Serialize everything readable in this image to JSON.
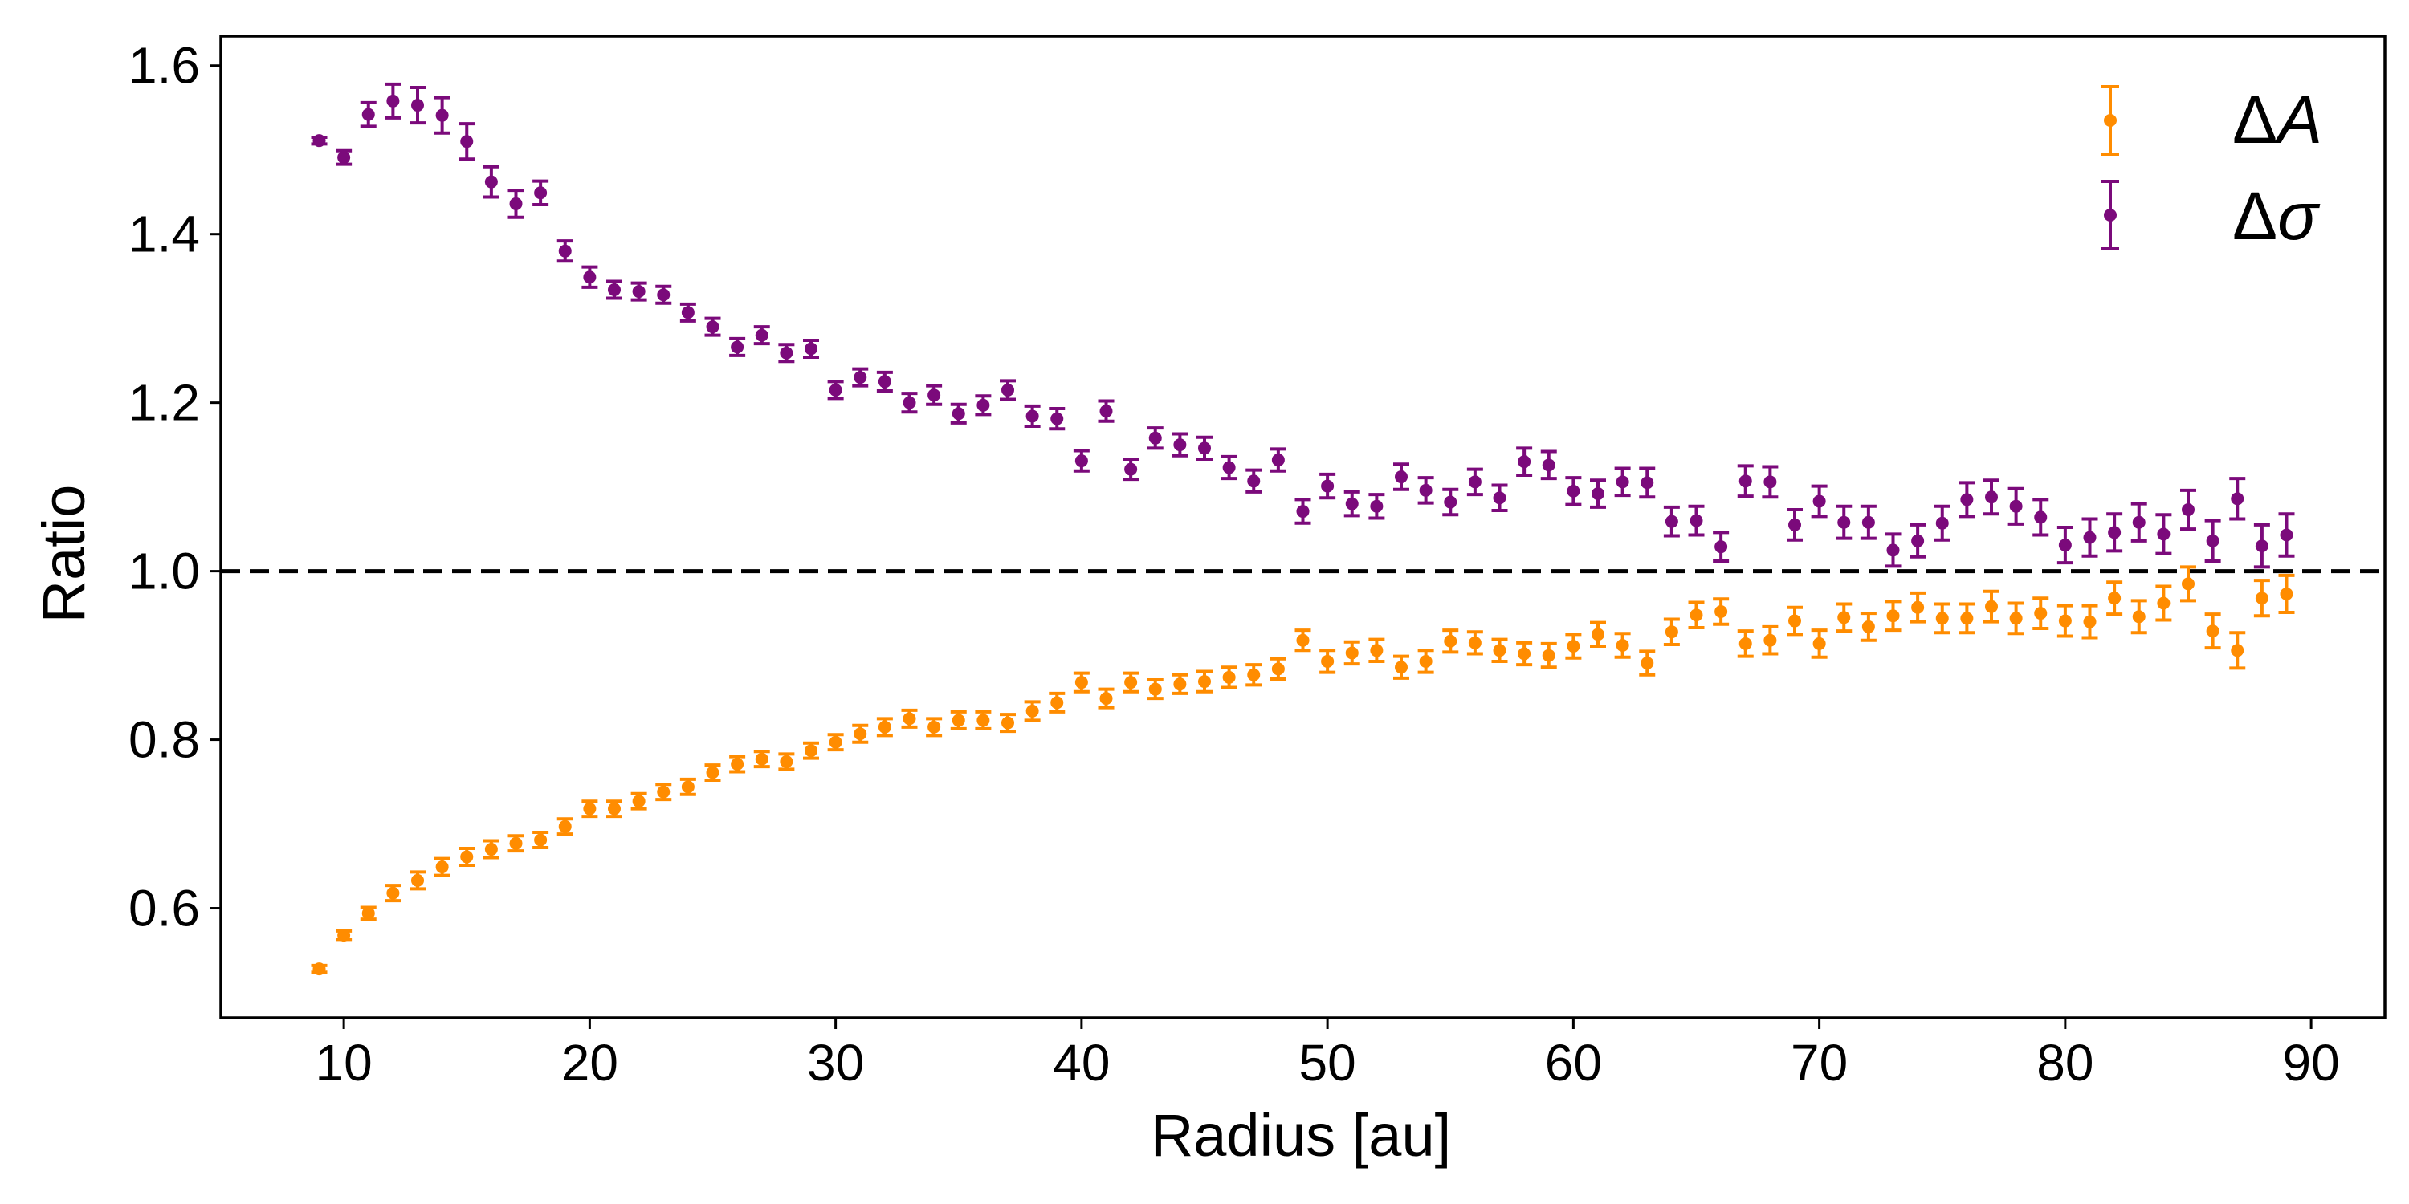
{
  "chart_data": {
    "type": "scatter",
    "title": "",
    "xlabel": "Radius [au]",
    "ylabel": "Ratio",
    "xlim": [
      5,
      93
    ],
    "ylim": [
      0.47,
      1.635
    ],
    "xticks": [
      10,
      20,
      30,
      40,
      50,
      60,
      70,
      80,
      90
    ],
    "xtick_labels": [
      "10",
      "20",
      "30",
      "40",
      "50",
      "60",
      "70",
      "80",
      "90"
    ],
    "yticks": [
      0.6,
      0.8,
      1.0,
      1.2,
      1.4,
      1.6
    ],
    "ytick_labels": [
      "0.6",
      "0.8",
      "1.0",
      "1.2",
      "1.4",
      "1.6"
    ],
    "grid": false,
    "legend_position": "top-right",
    "reference_line": {
      "y": 1.0,
      "style": "dashed",
      "color": "#000000"
    },
    "series": [
      {
        "name": "ΔA",
        "legend_label_base": "Δ",
        "legend_label_symbol": "A",
        "color": "#FF8C00",
        "x": [
          9,
          10,
          11,
          12,
          13,
          14,
          15,
          16,
          17,
          18,
          19,
          20,
          21,
          22,
          23,
          24,
          25,
          26,
          27,
          28,
          29,
          30,
          31,
          32,
          33,
          34,
          35,
          36,
          37,
          38,
          39,
          40,
          41,
          42,
          43,
          44,
          45,
          46,
          47,
          48,
          49,
          50,
          51,
          52,
          53,
          54,
          55,
          56,
          57,
          58,
          59,
          60,
          61,
          62,
          63,
          64,
          65,
          66,
          67,
          68,
          69,
          70,
          71,
          72,
          73,
          74,
          75,
          76,
          77,
          78,
          79,
          80,
          81,
          82,
          83,
          84,
          85,
          86,
          87,
          88,
          89
        ],
        "y": [
          0.528,
          0.568,
          0.594,
          0.618,
          0.633,
          0.649,
          0.661,
          0.67,
          0.677,
          0.681,
          0.697,
          0.718,
          0.718,
          0.727,
          0.738,
          0.744,
          0.761,
          0.771,
          0.777,
          0.774,
          0.787,
          0.797,
          0.807,
          0.815,
          0.825,
          0.815,
          0.823,
          0.823,
          0.82,
          0.834,
          0.844,
          0.868,
          0.849,
          0.868,
          0.86,
          0.866,
          0.869,
          0.874,
          0.877,
          0.884,
          0.918,
          0.893,
          0.903,
          0.906,
          0.886,
          0.893,
          0.917,
          0.915,
          0.906,
          0.902,
          0.9,
          0.911,
          0.925,
          0.912,
          0.891,
          0.928,
          0.948,
          0.952,
          0.914,
          0.918,
          0.941,
          0.914,
          0.945,
          0.934,
          0.947,
          0.957,
          0.944,
          0.944,
          0.958,
          0.944,
          0.95,
          0.941,
          0.94,
          0.968,
          0.946,
          0.962,
          0.985,
          0.929,
          0.906,
          0.968,
          0.973
        ],
        "err": [
          0.004,
          0.005,
          0.007,
          0.009,
          0.01,
          0.01,
          0.01,
          0.01,
          0.009,
          0.009,
          0.009,
          0.009,
          0.009,
          0.009,
          0.009,
          0.009,
          0.009,
          0.009,
          0.009,
          0.009,
          0.009,
          0.009,
          0.01,
          0.01,
          0.01,
          0.01,
          0.01,
          0.01,
          0.01,
          0.011,
          0.011,
          0.011,
          0.011,
          0.011,
          0.011,
          0.011,
          0.012,
          0.012,
          0.012,
          0.012,
          0.012,
          0.013,
          0.013,
          0.013,
          0.013,
          0.013,
          0.013,
          0.013,
          0.013,
          0.013,
          0.014,
          0.014,
          0.014,
          0.014,
          0.014,
          0.015,
          0.015,
          0.015,
          0.015,
          0.016,
          0.016,
          0.016,
          0.016,
          0.016,
          0.017,
          0.017,
          0.017,
          0.017,
          0.018,
          0.018,
          0.018,
          0.018,
          0.019,
          0.019,
          0.019,
          0.02,
          0.02,
          0.02,
          0.021,
          0.021,
          0.022
        ]
      },
      {
        "name": "Δσ",
        "legend_label_base": "Δ",
        "legend_label_symbol": "σ",
        "color": "#7B0A7B",
        "x": [
          9,
          10,
          11,
          12,
          13,
          14,
          15,
          16,
          17,
          18,
          19,
          20,
          21,
          22,
          23,
          24,
          25,
          26,
          27,
          28,
          29,
          30,
          31,
          32,
          33,
          34,
          35,
          36,
          37,
          38,
          39,
          40,
          41,
          42,
          43,
          44,
          45,
          46,
          47,
          48,
          49,
          50,
          51,
          52,
          53,
          54,
          55,
          56,
          57,
          58,
          59,
          60,
          61,
          62,
          63,
          64,
          65,
          66,
          67,
          68,
          69,
          70,
          71,
          72,
          73,
          74,
          75,
          76,
          77,
          78,
          79,
          80,
          81,
          82,
          83,
          84,
          85,
          86,
          87,
          88,
          89
        ],
        "y": [
          1.511,
          1.491,
          1.542,
          1.558,
          1.553,
          1.541,
          1.51,
          1.462,
          1.436,
          1.449,
          1.38,
          1.349,
          1.334,
          1.332,
          1.328,
          1.307,
          1.29,
          1.266,
          1.28,
          1.259,
          1.264,
          1.215,
          1.23,
          1.225,
          1.2,
          1.209,
          1.187,
          1.197,
          1.215,
          1.184,
          1.181,
          1.131,
          1.19,
          1.121,
          1.158,
          1.15,
          1.146,
          1.123,
          1.107,
          1.132,
          1.071,
          1.101,
          1.08,
          1.077,
          1.112,
          1.096,
          1.082,
          1.106,
          1.087,
          1.13,
          1.126,
          1.095,
          1.092,
          1.106,
          1.105,
          1.059,
          1.06,
          1.029,
          1.107,
          1.106,
          1.055,
          1.083,
          1.058,
          1.058,
          1.025,
          1.036,
          1.057,
          1.085,
          1.088,
          1.077,
          1.064,
          1.031,
          1.04,
          1.046,
          1.058,
          1.044,
          1.073,
          1.036,
          1.086,
          1.03,
          1.043
        ],
        "err": [
          0.004,
          0.008,
          0.014,
          0.02,
          0.021,
          0.021,
          0.021,
          0.018,
          0.016,
          0.014,
          0.012,
          0.012,
          0.01,
          0.01,
          0.01,
          0.01,
          0.01,
          0.01,
          0.01,
          0.01,
          0.01,
          0.01,
          0.01,
          0.011,
          0.011,
          0.011,
          0.011,
          0.011,
          0.011,
          0.012,
          0.012,
          0.012,
          0.012,
          0.012,
          0.012,
          0.013,
          0.013,
          0.013,
          0.013,
          0.013,
          0.014,
          0.014,
          0.014,
          0.014,
          0.015,
          0.015,
          0.015,
          0.015,
          0.015,
          0.016,
          0.016,
          0.016,
          0.016,
          0.016,
          0.017,
          0.017,
          0.017,
          0.017,
          0.018,
          0.018,
          0.018,
          0.018,
          0.019,
          0.019,
          0.019,
          0.019,
          0.02,
          0.02,
          0.02,
          0.021,
          0.021,
          0.021,
          0.022,
          0.022,
          0.022,
          0.023,
          0.023,
          0.024,
          0.024,
          0.025,
          0.025
        ]
      }
    ]
  }
}
